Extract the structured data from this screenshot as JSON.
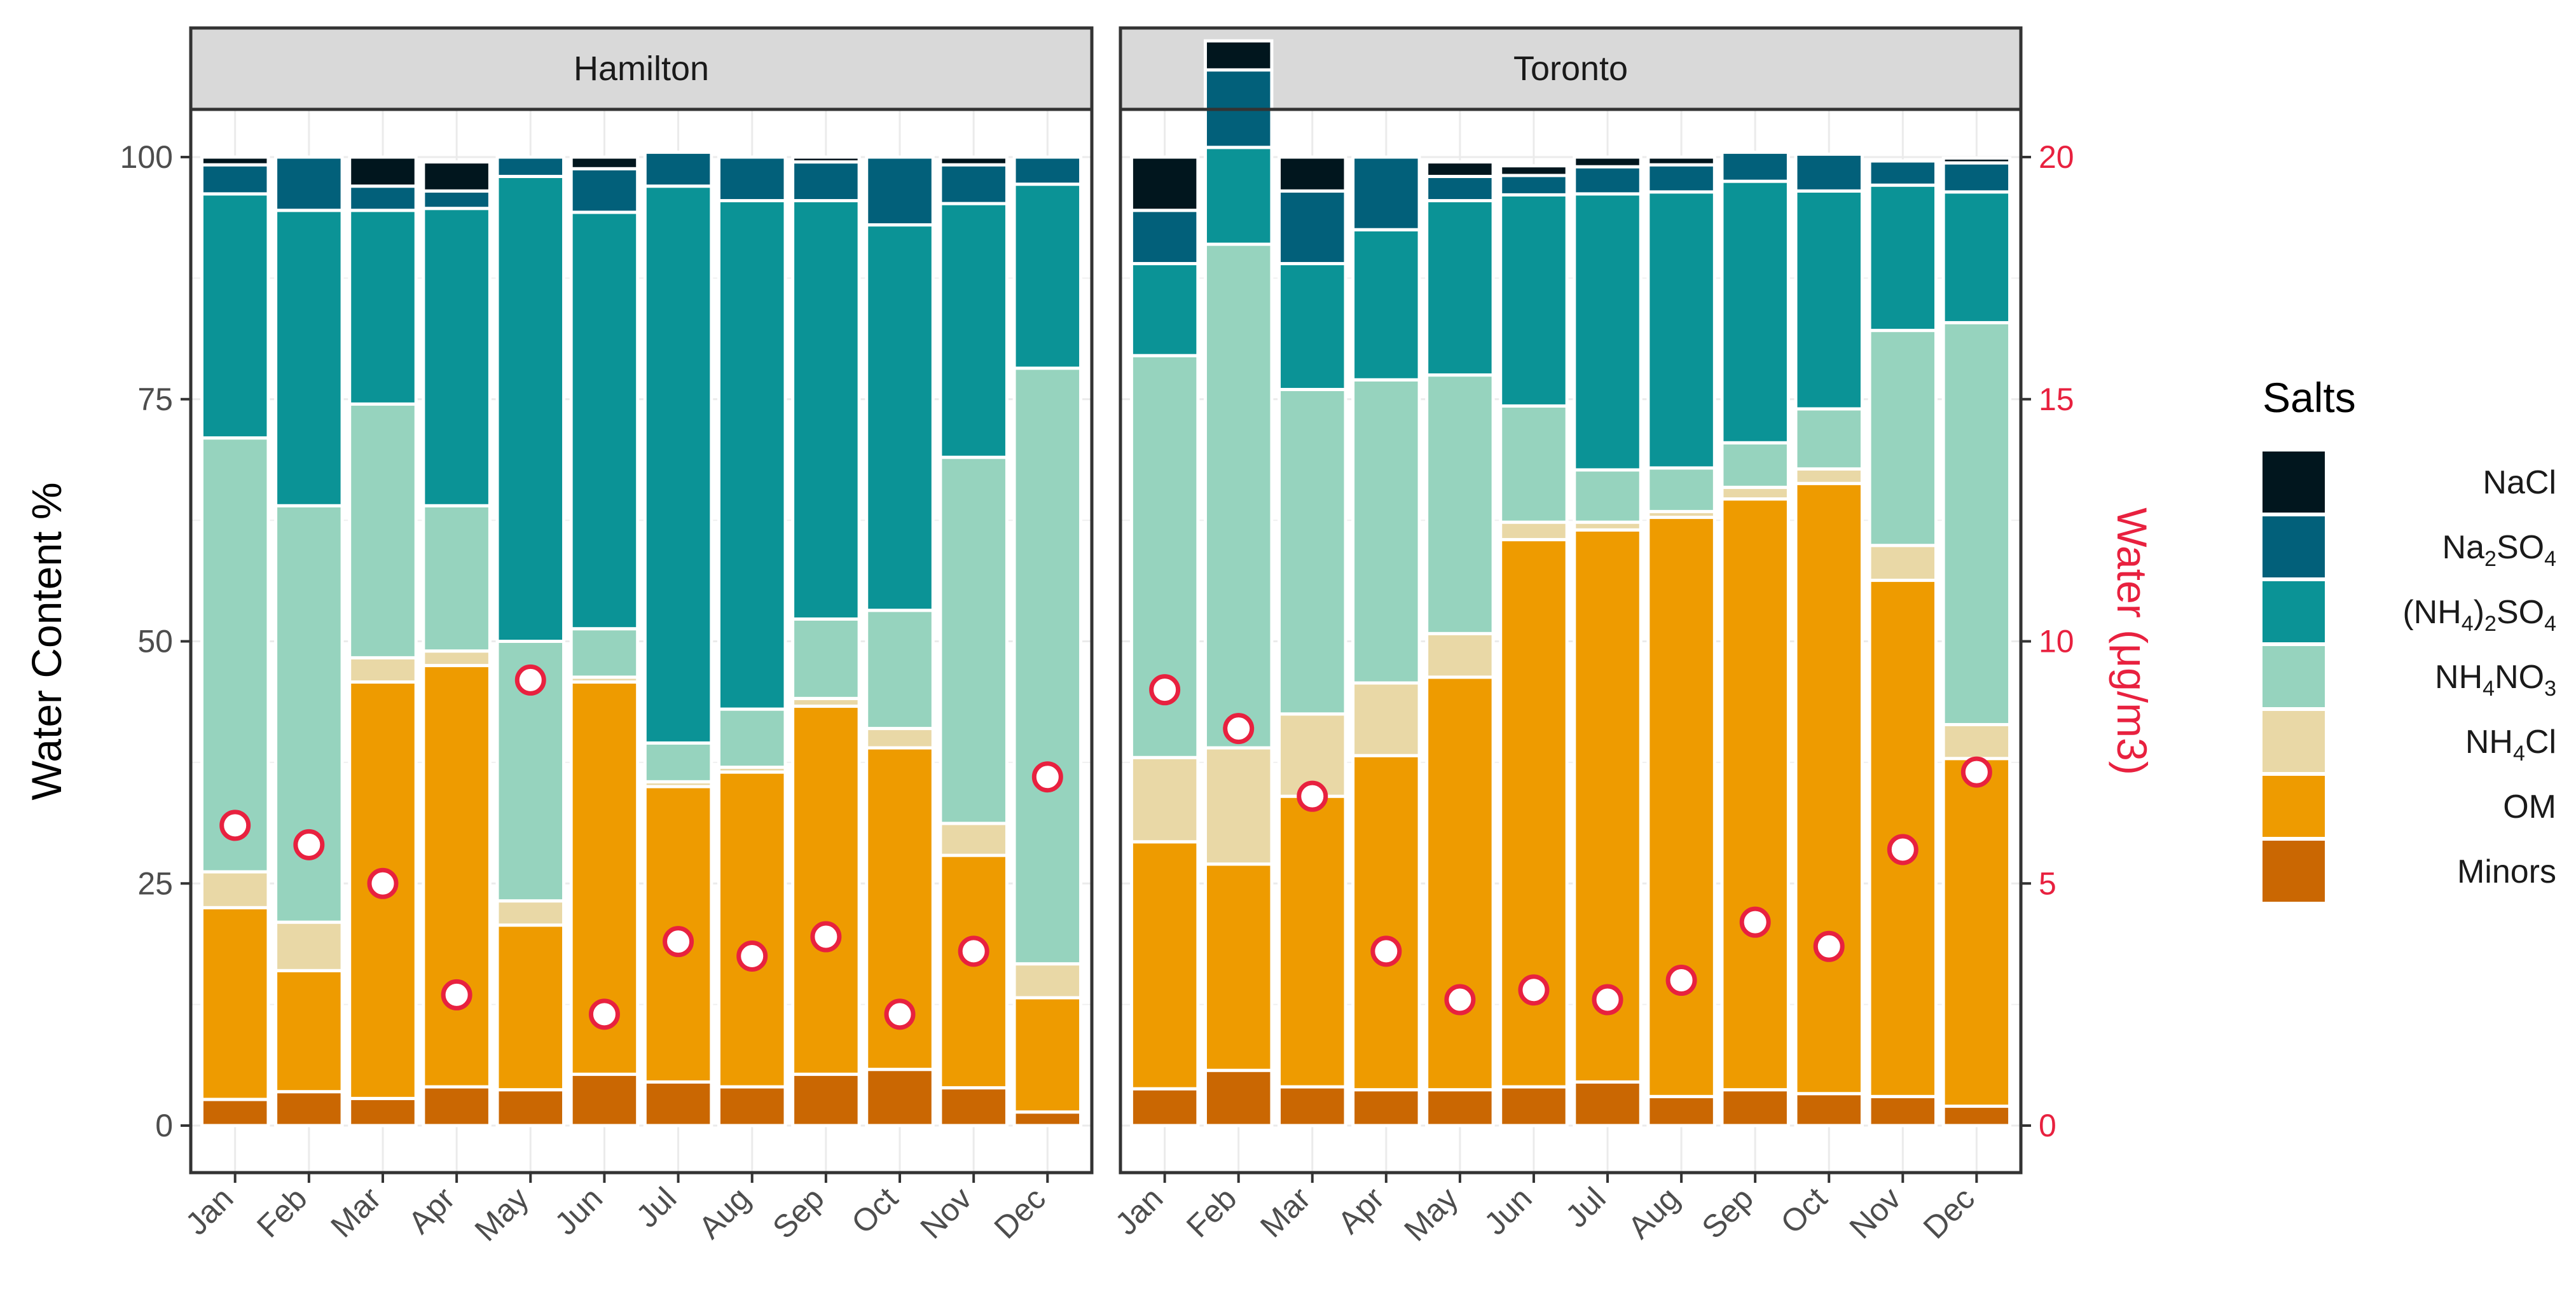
{
  "chart_data": {
    "type": "bar",
    "stacked": true,
    "facets": [
      "Hamilton",
      "Toronto"
    ],
    "categories": [
      "Jan",
      "Feb",
      "Mar",
      "Apr",
      "May",
      "Jun",
      "Jul",
      "Aug",
      "Sep",
      "Oct",
      "Nov",
      "Dec"
    ],
    "ylabel": "Water Content %",
    "ylim": [
      0,
      100
    ],
    "yticks": [
      0,
      25,
      50,
      75,
      100
    ],
    "y2label": "Water (μg/m3)",
    "y2lim": [
      0,
      20
    ],
    "y2ticks": [
      0,
      5,
      10,
      15,
      20
    ],
    "legend_title": "Salts",
    "legend_position": "right",
    "series": [
      {
        "name": "NaCl",
        "label_parts": [
          [
            "NaCl",
            ""
          ]
        ],
        "color": "#01161e",
        "Hamilton": [
          0.8,
          0,
          3,
          3,
          0,
          1.2,
          0,
          0,
          0.5,
          0,
          0.8,
          0
        ],
        "Toronto": [
          5.5,
          3,
          3.5,
          0,
          1.5,
          1,
          1,
          0.8,
          0,
          0,
          0,
          0.5
        ]
      },
      {
        "name": "Na2SO4",
        "label_parts": [
          [
            "Na",
            ""
          ],
          [
            "2",
            "sub"
          ],
          [
            "SO",
            ""
          ],
          [
            "4",
            "sub"
          ]
        ],
        "color": "#02607a",
        "Hamilton": [
          3,
          5.5,
          2.5,
          1.8,
          2,
          4.5,
          3.5,
          4.5,
          4,
          7,
          4,
          2.8
        ],
        "Toronto": [
          5.5,
          8,
          7.5,
          7.5,
          2.5,
          2,
          2.8,
          2.8,
          3,
          3.8,
          2.5,
          3
        ]
      },
      {
        "name": "(NH4)2SO4",
        "label_parts": [
          [
            "(NH",
            ""
          ],
          [
            "4",
            "sub"
          ],
          [
            ")",
            ""
          ],
          [
            "2",
            "sub"
          ],
          [
            "SO",
            ""
          ],
          [
            "4",
            "sub"
          ]
        ],
        "color": "#0b9396",
        "Hamilton": [
          25.2,
          30.5,
          20,
          30.7,
          48,
          43,
          57.5,
          52.5,
          43.2,
          39.8,
          26.2,
          19
        ],
        "Toronto": [
          9.5,
          10,
          13,
          15.5,
          18,
          21.8,
          28.5,
          28.5,
          27,
          22.5,
          15,
          13.5
        ]
      },
      {
        "name": "NH4NO3",
        "label_parts": [
          [
            "NH",
            ""
          ],
          [
            "4",
            "sub"
          ],
          [
            "NO",
            ""
          ],
          [
            "3",
            "sub"
          ]
        ],
        "color": "#96d3be",
        "Hamilton": [
          44.8,
          43,
          26.2,
          15,
          26.8,
          5,
          4,
          6,
          8.2,
          12.2,
          37.8,
          61.5
        ],
        "Toronto": [
          41.5,
          52,
          33.5,
          31.3,
          26.7,
          12,
          5.4,
          4.5,
          4.6,
          6.2,
          22.2,
          41.5
        ]
      },
      {
        "name": "NH4Cl",
        "label_parts": [
          [
            "NH",
            ""
          ],
          [
            "4",
            "sub"
          ],
          [
            "Cl",
            ""
          ]
        ],
        "color": "#e9d8a6",
        "Hamilton": [
          3.7,
          5,
          2.5,
          1.5,
          2.5,
          0.5,
          0.5,
          0.5,
          0.8,
          2,
          3.3,
          3.5
        ],
        "Toronto": [
          8.7,
          12,
          8.5,
          7.5,
          4.5,
          1.8,
          0.8,
          0.6,
          1.2,
          1.5,
          3.6,
          3.5
        ]
      },
      {
        "name": "OM",
        "label_parts": [
          [
            "OM",
            ""
          ]
        ],
        "color": "#ee9b00",
        "Hamilton": [
          19.8,
          12.5,
          43,
          43.5,
          17,
          40.5,
          30.5,
          32.5,
          38,
          33.2,
          24,
          11.8
        ],
        "Toronto": [
          25.5,
          21.3,
          30,
          34.5,
          42.6,
          56.5,
          57,
          59.8,
          61,
          63,
          53.3,
          35.9
        ]
      },
      {
        "name": "Minors",
        "label_parts": [
          [
            "Minors",
            ""
          ]
        ],
        "color": "#ca6702",
        "Hamilton": [
          2.7,
          3.5,
          2.8,
          4,
          3.7,
          5.3,
          4.5,
          4,
          5.3,
          5.8,
          3.9,
          1.4
        ],
        "Toronto": [
          3.8,
          5.7,
          4,
          3.7,
          3.7,
          4,
          4.5,
          3,
          3.7,
          3.3,
          3,
          2
        ]
      }
    ],
    "water_series": {
      "name": "Water (μg/m3)",
      "color": "#e8213f",
      "Hamilton": [
        6.2,
        5.8,
        5.0,
        2.7,
        9.2,
        2.3,
        3.8,
        3.5,
        3.9,
        2.3,
        3.6,
        7.2
      ],
      "Toronto": [
        9.0,
        8.2,
        6.8,
        3.6,
        2.6,
        2.8,
        2.6,
        3.0,
        4.2,
        3.7,
        5.7,
        7.3
      ]
    }
  }
}
